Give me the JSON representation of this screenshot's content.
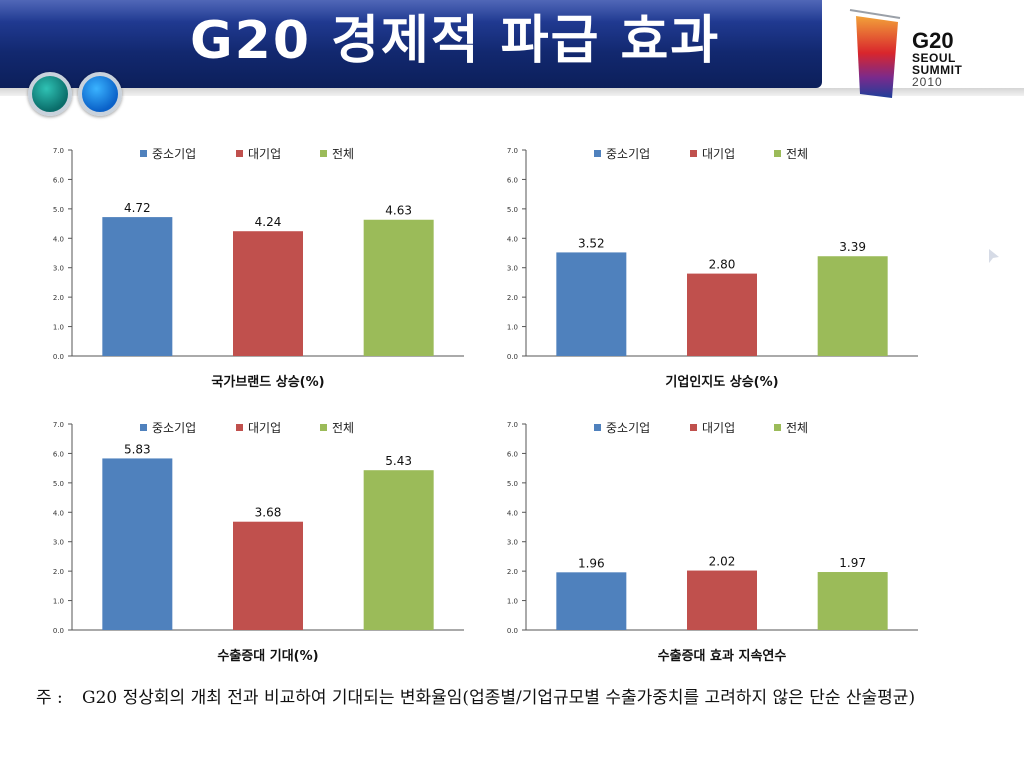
{
  "header": {
    "title": "G20 경제적 파급 효과"
  },
  "logo": {
    "line1": "G20",
    "line2": "SEOUL",
    "line3": "SUMMIT",
    "line4": "2010"
  },
  "colors": {
    "sme": "#4f81bd",
    "large": "#c0504d",
    "total": "#9bbb59"
  },
  "chart_data": [
    {
      "type": "bar",
      "title": "국가브랜드 상승(%)",
      "categories": [
        "중소기업",
        "대기업",
        "전체"
      ],
      "values": [
        4.72,
        4.24,
        4.63
      ],
      "value_labels": [
        "4.72",
        "4.24",
        "4.63"
      ],
      "ylim": [
        0,
        7
      ],
      "yticks": [
        "0.0",
        "1.0",
        "2.0",
        "3.0",
        "4.0",
        "5.0",
        "6.0",
        "7.0"
      ],
      "legend": "top-center",
      "grid": false
    },
    {
      "type": "bar",
      "title": "기업인지도 상승(%)",
      "categories": [
        "중소기업",
        "대기업",
        "전체"
      ],
      "values": [
        3.52,
        2.8,
        3.39
      ],
      "value_labels": [
        "3.52",
        "2.80",
        "3.39"
      ],
      "ylim": [
        0,
        7
      ],
      "yticks": [
        "0.0",
        "1.0",
        "2.0",
        "3.0",
        "4.0",
        "5.0",
        "6.0",
        "7.0"
      ],
      "legend": "top-center",
      "grid": false
    },
    {
      "type": "bar",
      "title": "수출증대 기대(%)",
      "categories": [
        "중소기업",
        "대기업",
        "전체"
      ],
      "values": [
        5.83,
        3.68,
        5.43
      ],
      "value_labels": [
        "5.83",
        "3.68",
        "5.43"
      ],
      "ylim": [
        0,
        7
      ],
      "yticks": [
        "0.0",
        "1.0",
        "2.0",
        "3.0",
        "4.0",
        "5.0",
        "6.0",
        "7.0"
      ],
      "legend": "top-center",
      "grid": false
    },
    {
      "type": "bar",
      "title": "수출증대 효과 지속연수",
      "categories": [
        "중소기업",
        "대기업",
        "전체"
      ],
      "values": [
        1.96,
        2.02,
        1.97
      ],
      "value_labels": [
        "1.96",
        "2.02",
        "1.97"
      ],
      "ylim": [
        0,
        7
      ],
      "yticks": [
        "0.0",
        "1.0",
        "2.0",
        "3.0",
        "4.0",
        "5.0",
        "6.0",
        "7.0"
      ],
      "legend": "top-center",
      "grid": false
    }
  ],
  "footnote": {
    "mark": "주 :",
    "text": "G20 정상회의 개최 전과 비교하여 기대되는 변화율임(업종별/기업규모별 수출가중치를 고려하지 않은 단순 산술평균)"
  }
}
